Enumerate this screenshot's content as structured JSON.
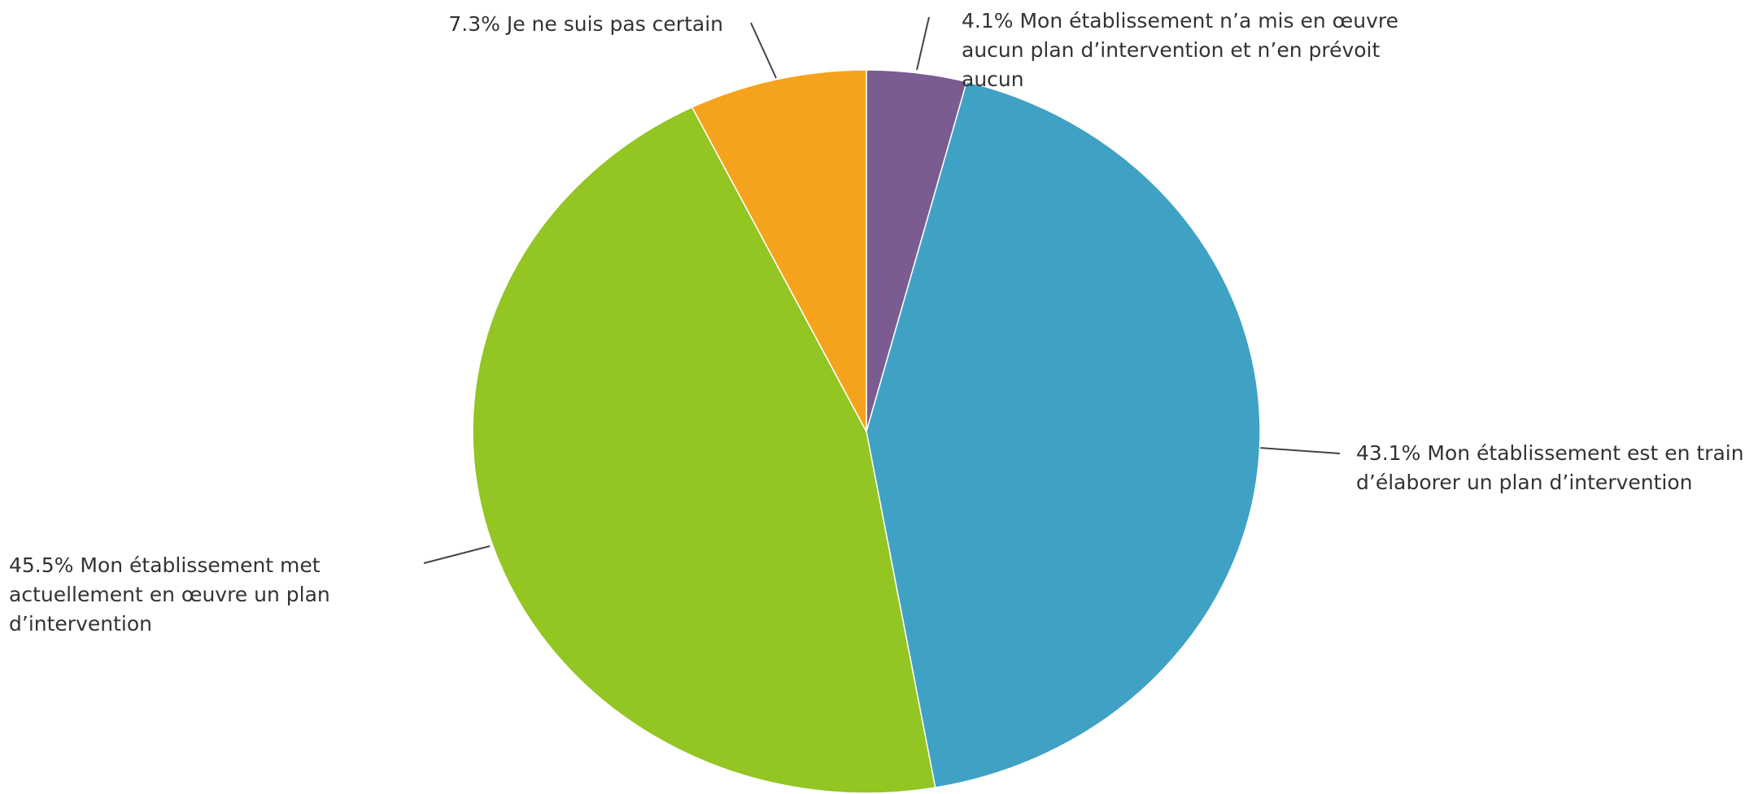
{
  "chart_data": {
    "type": "pie",
    "categories": [
      "Mon établissement n’a mis en œuvre aucun plan d’intervention et n’en prévoit aucun",
      "Mon établissement est en train d’élaborer un plan d’intervention",
      "Mon établissement met actuellement en œuvre un plan d’intervention",
      "Je ne suis pas certain"
    ],
    "values": [
      4.1,
      43.1,
      45.5,
      7.3
    ],
    "value_labels": [
      "4.1%",
      "43.1%",
      "45.5%",
      "7.3%"
    ],
    "colors": [
      "#7b5c91",
      "#3fa2c4",
      "#93c523",
      "#f5a31c"
    ]
  }
}
